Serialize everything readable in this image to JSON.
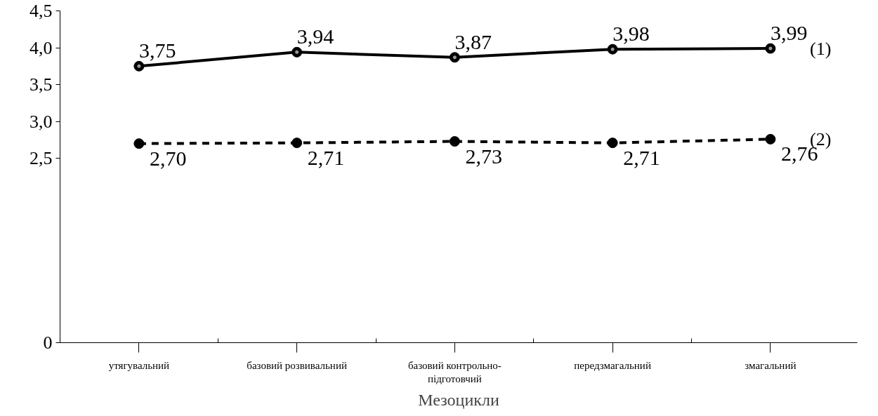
{
  "chart_data": {
    "type": "line",
    "xlabel": "Мезоцикли",
    "categories": [
      "утягувальний",
      "базовий розвивальний",
      "базовий контрольно-підготовчий",
      "передзмагальний",
      "змагальний"
    ],
    "series": [
      {
        "name": "(1)",
        "color": "#000000",
        "line_style": "solid",
        "values": [
          3.75,
          3.94,
          3.87,
          3.98,
          3.99
        ],
        "value_labels": [
          "3,75",
          "3,94",
          "3,87",
          "3,98",
          "3,99"
        ]
      },
      {
        "name": "(2)",
        "color": "#000000",
        "line_style": "dashed",
        "values": [
          2.7,
          2.71,
          2.73,
          2.71,
          2.76
        ],
        "value_labels": [
          "2,70",
          "2,71",
          "2,73",
          "2,71",
          "2,76"
        ]
      }
    ],
    "ylim": [
      0,
      4.5
    ],
    "yticks": [
      0,
      {
        "value": 2.5,
        "label": "2,5"
      },
      {
        "value": 3.0,
        "label": "3,0"
      },
      {
        "value": 3.5,
        "label": "3,5"
      },
      {
        "value": 4.0,
        "label": "4,0"
      },
      {
        "value": 4.5,
        "label": "4,5"
      }
    ],
    "marker": "circle",
    "grid": false
  }
}
